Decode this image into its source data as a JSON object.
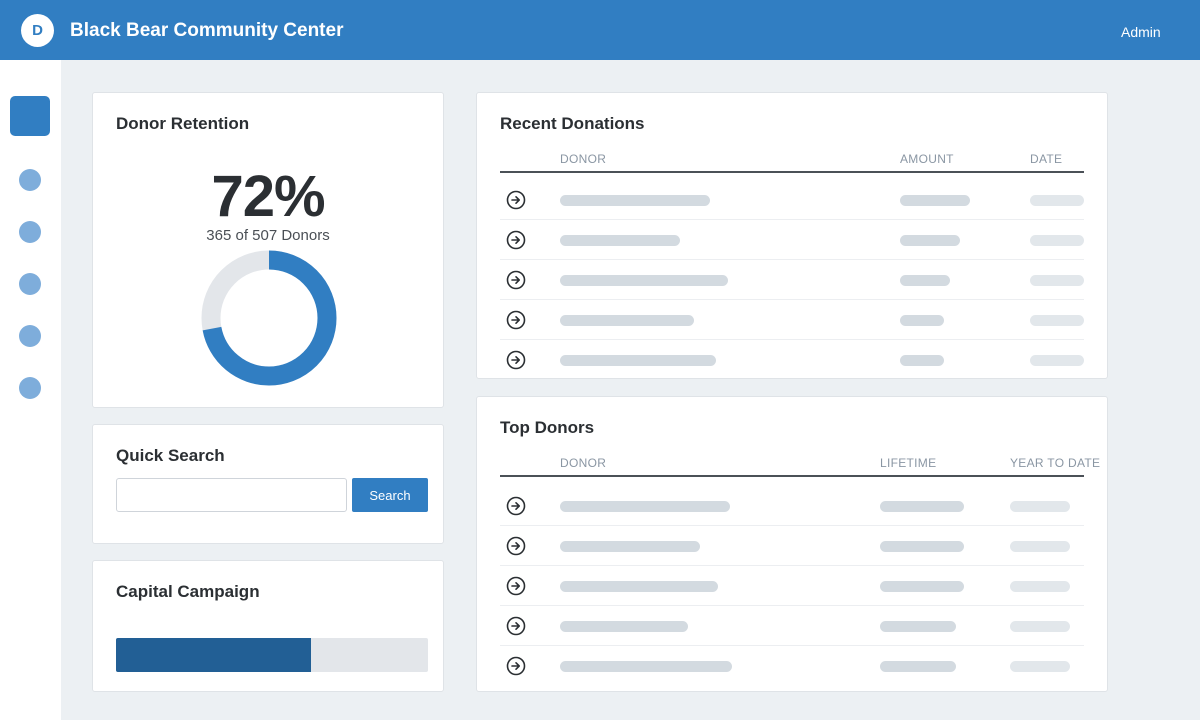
{
  "header": {
    "logo_letter": "D",
    "title": "Black Bear Community Center",
    "user_label": "Admin"
  },
  "colors": {
    "brand": "#317ec2",
    "progress_fill": "#225f95",
    "placeholder_bar": "#d3dae0",
    "sidebar_dot": "#7eaddb"
  },
  "sidebar": {
    "items": [
      "active-item",
      "dot",
      "dot",
      "dot",
      "dot",
      "dot"
    ]
  },
  "retention": {
    "title": "Donor Retention",
    "percent_label": "72%",
    "subtitle": "365 of 507 Donors",
    "fraction": 0.72
  },
  "search": {
    "title": "Quick Search",
    "value": "",
    "placeholder": "",
    "button_label": "Search"
  },
  "campaign": {
    "title": "Capital Campaign",
    "progress": 0.625
  },
  "recent_donations": {
    "title": "Recent Donations",
    "columns": [
      "DONOR",
      "AMOUNT",
      "DATE"
    ],
    "row_icon": "arrow-circle-right-icon",
    "rows": 5
  },
  "top_donors": {
    "title": "Top Donors",
    "columns": [
      "DONOR",
      "LIFETIME",
      "YEAR TO DATE"
    ],
    "row_icon": "arrow-circle-right-icon",
    "rows": 5
  }
}
